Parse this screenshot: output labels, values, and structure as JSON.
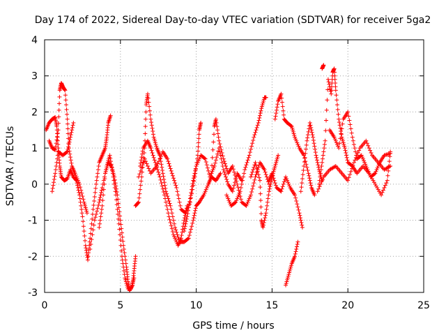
{
  "chart_data": {
    "type": "scatter",
    "title": "Day 174 of 2022, Sidereal Day-to-day VTEC variation (SDTVAR) for receiver 5ga2",
    "xlabel": "GPS time / hours",
    "ylabel": "SDTVAR / TECUs",
    "xlim": [
      0,
      25
    ],
    "ylim": [
      -3,
      4
    ],
    "xticks": [
      "0",
      "5",
      "10",
      "15",
      "20",
      "25"
    ],
    "yticks": [
      "-3",
      "-2",
      "-1",
      "0",
      "1",
      "2",
      "3",
      "4"
    ],
    "grid": true,
    "marker": "+",
    "series": [
      {
        "name": "SDTVAR",
        "color": "#ff0000",
        "segments": [
          [
            [
              0.1,
              1.5
            ],
            [
              0.3,
              1.7
            ],
            [
              0.5,
              1.8
            ],
            [
              0.7,
              1.85
            ],
            [
              0.8,
              1.6
            ],
            [
              0.9,
              1.0
            ],
            [
              1.0,
              0.5
            ],
            [
              1.1,
              0.2
            ],
            [
              1.3,
              0.1
            ],
            [
              1.5,
              0.15
            ],
            [
              1.7,
              0.4
            ],
            [
              1.9,
              0.2
            ],
            [
              2.1,
              0.1
            ],
            [
              2.3,
              -0.3
            ],
            [
              2.5,
              -0.9
            ],
            [
              2.7,
              -1.7
            ],
            [
              2.85,
              -2.1
            ],
            [
              3.0,
              -1.5
            ],
            [
              3.2,
              -0.7
            ],
            [
              3.4,
              0.0
            ],
            [
              3.6,
              0.6
            ],
            [
              3.8,
              0.8
            ],
            [
              4.0,
              1.0
            ],
            [
              4.1,
              1.3
            ],
            [
              4.2,
              1.7
            ],
            [
              4.35,
              1.9
            ]
          ],
          [
            [
              0.3,
              1.2
            ],
            [
              0.5,
              1.0
            ],
            [
              0.7,
              0.95
            ],
            [
              0.9,
              1.5
            ],
            [
              1.0,
              2.6
            ],
            [
              1.1,
              2.8
            ],
            [
              1.2,
              2.7
            ],
            [
              1.35,
              2.6
            ],
            [
              1.5,
              1.8
            ],
            [
              1.6,
              1.0
            ],
            [
              1.8,
              0.5
            ],
            [
              2.0,
              0.3
            ],
            [
              2.3,
              0.0
            ],
            [
              2.6,
              -0.5
            ],
            [
              2.8,
              -0.8
            ]
          ],
          [
            [
              0.5,
              -0.2
            ],
            [
              0.7,
              0.3
            ],
            [
              0.9,
              0.9
            ],
            [
              1.2,
              0.8
            ],
            [
              1.5,
              0.9
            ],
            [
              1.7,
              1.3
            ],
            [
              1.9,
              1.7
            ]
          ],
          [
            [
              3.6,
              -1.2
            ],
            [
              3.8,
              -0.6
            ],
            [
              4.0,
              0.3
            ],
            [
              4.2,
              0.6
            ],
            [
              4.4,
              0.5
            ],
            [
              4.6,
              0.2
            ],
            [
              4.8,
              -0.3
            ],
            [
              5.0,
              -1.0
            ],
            [
              5.2,
              -1.7
            ],
            [
              5.4,
              -2.3
            ],
            [
              5.5,
              -2.7
            ],
            [
              5.6,
              -2.95
            ],
            [
              5.8,
              -2.8
            ],
            [
              5.9,
              -2.4
            ],
            [
              6.0,
              -2.0
            ]
          ],
          [
            [
              3.0,
              -1.8
            ],
            [
              3.3,
              -1.0
            ],
            [
              3.6,
              -0.5
            ],
            [
              3.8,
              -0.1
            ],
            [
              4.1,
              0.5
            ],
            [
              4.3,
              0.8
            ],
            [
              4.5,
              0.3
            ],
            [
              4.7,
              -0.3
            ],
            [
              4.9,
              -1.1
            ],
            [
              5.1,
              -2.0
            ],
            [
              5.3,
              -2.6
            ],
            [
              5.5,
              -2.9
            ],
            [
              5.7,
              -2.9
            ],
            [
              5.9,
              -2.6
            ]
          ],
          [
            [
              6.0,
              -0.6
            ],
            [
              6.2,
              -0.5
            ],
            [
              6.4,
              0.2
            ],
            [
              6.6,
              1.0
            ],
            [
              6.7,
              2.2
            ],
            [
              6.8,
              2.5
            ],
            [
              7.0,
              1.8
            ],
            [
              7.2,
              1.3
            ],
            [
              7.4,
              1.0
            ],
            [
              7.6,
              0.8
            ],
            [
              7.8,
              0.3
            ],
            [
              8.0,
              -0.2
            ],
            [
              8.3,
              -0.6
            ],
            [
              8.6,
              -1.2
            ],
            [
              8.9,
              -1.6
            ],
            [
              9.2,
              -1.6
            ],
            [
              9.5,
              -1.5
            ],
            [
              9.8,
              -1.0
            ],
            [
              10.0,
              -0.6
            ],
            [
              10.2,
              -0.5
            ],
            [
              10.5,
              -0.3
            ],
            [
              10.8,
              0.0
            ],
            [
              11.0,
              0.2
            ],
            [
              11.3,
              0.1
            ],
            [
              11.6,
              0.3
            ]
          ],
          [
            [
              6.3,
              0.5
            ],
            [
              6.5,
              1.0
            ],
            [
              6.8,
              1.2
            ],
            [
              7.0,
              1.0
            ],
            [
              7.3,
              0.6
            ],
            [
              7.6,
              0.2
            ],
            [
              7.9,
              -0.3
            ],
            [
              8.2,
              -0.9
            ],
            [
              8.5,
              -1.4
            ],
            [
              8.8,
              -1.7
            ],
            [
              9.0,
              -1.5
            ],
            [
              9.2,
              -1.0
            ],
            [
              9.4,
              -0.6
            ]
          ],
          [
            [
              6.2,
              0.2
            ],
            [
              6.6,
              0.7
            ],
            [
              7.0,
              0.3
            ],
            [
              7.4,
              0.5
            ],
            [
              7.8,
              0.9
            ],
            [
              8.1,
              0.7
            ],
            [
              8.4,
              0.3
            ],
            [
              8.7,
              -0.1
            ],
            [
              9.0,
              -0.7
            ],
            [
              9.3,
              -0.8
            ],
            [
              9.6,
              -0.5
            ],
            [
              9.9,
              0.2
            ],
            [
              10.1,
              0.8
            ],
            [
              10.2,
              1.5
            ],
            [
              10.3,
              1.7
            ]
          ],
          [
            [
              9.2,
              -1.3
            ],
            [
              9.4,
              -0.9
            ],
            [
              9.6,
              -0.4
            ],
            [
              9.8,
              0.1
            ],
            [
              10.0,
              0.5
            ],
            [
              10.3,
              0.8
            ],
            [
              10.6,
              0.7
            ],
            [
              10.9,
              0.2
            ],
            [
              11.2,
              0.5
            ],
            [
              11.5,
              1.0
            ],
            [
              11.8,
              0.4
            ],
            [
              12.1,
              0.0
            ],
            [
              12.4,
              -0.2
            ],
            [
              12.7,
              0.3
            ],
            [
              13.0,
              0.1
            ]
          ],
          [
            [
              11.0,
              0.3
            ],
            [
              11.2,
              1.6
            ],
            [
              11.3,
              1.8
            ],
            [
              11.5,
              1.2
            ],
            [
              11.8,
              0.7
            ],
            [
              12.1,
              0.3
            ],
            [
              12.4,
              0.5
            ],
            [
              12.7,
              0.0
            ],
            [
              13.0,
              -0.5
            ],
            [
              13.3,
              -0.6
            ],
            [
              13.6,
              -0.3
            ],
            [
              13.9,
              0.2
            ],
            [
              14.2,
              0.6
            ],
            [
              14.5,
              0.4
            ],
            [
              14.8,
              0.0
            ]
          ],
          [
            [
              12.0,
              -0.3
            ],
            [
              12.3,
              -0.6
            ],
            [
              12.6,
              -0.5
            ],
            [
              12.9,
              -0.2
            ],
            [
              13.2,
              0.4
            ],
            [
              13.5,
              0.8
            ],
            [
              13.8,
              1.3
            ],
            [
              14.1,
              1.7
            ],
            [
              14.3,
              2.1
            ],
            [
              14.5,
              2.4
            ],
            [
              14.6,
              2.4
            ]
          ],
          [
            [
              13.6,
              0.2
            ],
            [
              13.9,
              0.6
            ],
            [
              14.2,
              0.1
            ],
            [
              14.3,
              -1.0
            ],
            [
              14.4,
              -1.2
            ],
            [
              14.6,
              -0.8
            ],
            [
              14.8,
              -0.2
            ],
            [
              15.0,
              0.2
            ],
            [
              15.2,
              0.5
            ],
            [
              15.4,
              0.8
            ]
          ],
          [
            [
              14.8,
              0.1
            ],
            [
              15.0,
              0.3
            ],
            [
              15.3,
              -0.1
            ],
            [
              15.6,
              -0.2
            ],
            [
              15.9,
              0.2
            ],
            [
              16.2,
              -0.1
            ],
            [
              16.5,
              -0.3
            ],
            [
              16.8,
              -0.8
            ],
            [
              17.0,
              -1.2
            ]
          ],
          [
            [
              15.2,
              1.8
            ],
            [
              15.4,
              2.3
            ],
            [
              15.6,
              2.5
            ],
            [
              15.8,
              1.8
            ],
            [
              16.0,
              1.7
            ],
            [
              16.3,
              1.6
            ],
            [
              16.5,
              1.3
            ],
            [
              16.8,
              1.0
            ],
            [
              17.1,
              0.8
            ],
            [
              17.4,
              0.3
            ],
            [
              17.6,
              -0.1
            ],
            [
              17.8,
              -0.3
            ]
          ],
          [
            [
              15.9,
              -2.8
            ],
            [
              16.1,
              -2.5
            ],
            [
              16.3,
              -2.2
            ],
            [
              16.5,
              -2.0
            ],
            [
              16.7,
              -1.6
            ]
          ],
          [
            [
              16.9,
              -0.2
            ],
            [
              17.1,
              0.5
            ],
            [
              17.3,
              1.2
            ],
            [
              17.5,
              1.7
            ],
            [
              17.7,
              1.3
            ],
            [
              17.9,
              0.8
            ],
            [
              18.1,
              0.4
            ],
            [
              18.3,
              0.1
            ]
          ],
          [
            [
              18.3,
              3.2
            ],
            [
              18.4,
              3.3
            ]
          ],
          [
            [
              18.1,
              0.0
            ],
            [
              18.3,
              0.6
            ],
            [
              18.5,
              1.2
            ],
            [
              18.7,
              2.9
            ],
            [
              18.9,
              2.5
            ],
            [
              19.0,
              3.1
            ],
            [
              19.1,
              3.2
            ],
            [
              19.2,
              2.6
            ],
            [
              19.4,
              1.8
            ],
            [
              19.6,
              1.3
            ],
            [
              19.8,
              1.0
            ],
            [
              20.0,
              0.6
            ],
            [
              20.3,
              0.5
            ],
            [
              20.6,
              0.3
            ],
            [
              21.0,
              0.5
            ],
            [
              21.4,
              0.3
            ],
            [
              21.8,
              0.0
            ],
            [
              22.2,
              -0.3
            ],
            [
              22.6,
              0.1
            ],
            [
              22.8,
              0.9
            ]
          ],
          [
            [
              18.0,
              -0.2
            ],
            [
              18.4,
              0.2
            ],
            [
              18.8,
              0.4
            ],
            [
              19.2,
              0.5
            ],
            [
              19.6,
              0.3
            ],
            [
              20.0,
              0.1
            ],
            [
              20.4,
              0.6
            ],
            [
              20.8,
              1.0
            ],
            [
              21.2,
              1.2
            ],
            [
              21.6,
              0.8
            ],
            [
              22.0,
              0.6
            ],
            [
              22.4,
              0.4
            ],
            [
              22.8,
              0.5
            ]
          ],
          [
            [
              18.8,
              1.5
            ],
            [
              19.1,
              1.3
            ],
            [
              19.4,
              1.0
            ],
            [
              19.7,
              1.8
            ],
            [
              20.0,
              2.0
            ],
            [
              20.3,
              1.3
            ],
            [
              20.6,
              0.7
            ],
            [
              20.9,
              0.8
            ],
            [
              21.2,
              0.5
            ],
            [
              21.5,
              0.2
            ],
            [
              21.8,
              0.3
            ],
            [
              22.1,
              0.6
            ],
            [
              22.4,
              0.8
            ],
            [
              22.8,
              0.85
            ]
          ]
        ]
      }
    ]
  }
}
